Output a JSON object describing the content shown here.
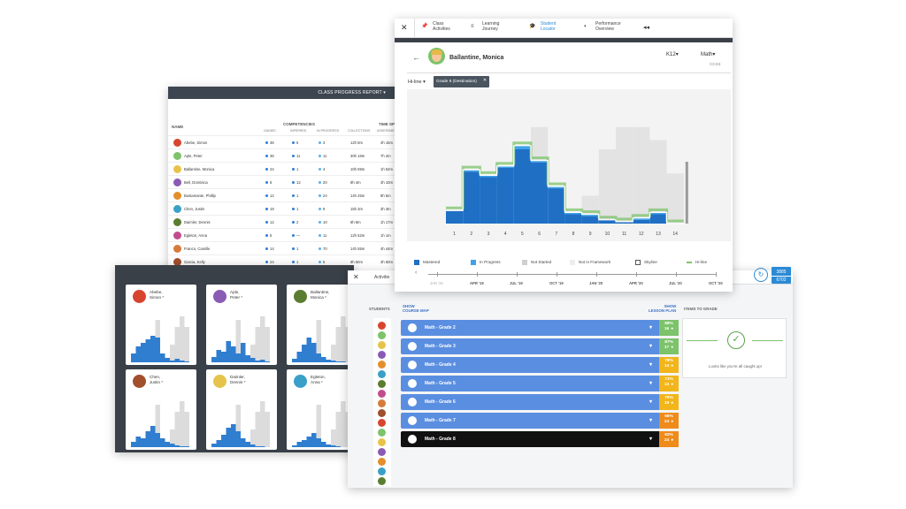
{
  "class_progress": {
    "title": "CLASS PROGRESS REPORT",
    "col_name": "NAME",
    "col_competencies": "COMPETENCIES",
    "col_time": "TIME SPE",
    "sub_gained": "GAINED",
    "sub_inferred": "INFERRED",
    "sub_inprogress": "IN PROGRESS",
    "sub_collections": "COLLECTIONS",
    "sub_assessments": "ASSESSMEN",
    "rows": [
      {
        "name": "Abebe, Simon",
        "gained": "36",
        "inferred": "5",
        "inprogress": "3",
        "collections": "12h 8m",
        "assess": "4h 15m"
      },
      {
        "name": "Aple, Peter",
        "gained": "36",
        "inferred": "11",
        "inprogress": "11",
        "collections": "30h 18m",
        "assess": "7h 2m"
      },
      {
        "name": "Ballantine, Monica",
        "gained": "24",
        "inferred": "1",
        "inprogress": "4",
        "collections": "10h 59m",
        "assess": "1h 52m"
      },
      {
        "name": "Bell, Dominica",
        "gained": "6",
        "inferred": "12",
        "inprogress": "20",
        "collections": "8h 4m",
        "assess": "4h 10m"
      },
      {
        "name": "Bustamante, Phillip",
        "gained": "12",
        "inferred": "1",
        "inprogress": "24",
        "collections": "14h 25m",
        "assess": "8h 5m"
      },
      {
        "name": "Chen, Justin",
        "gained": "19",
        "inferred": "1",
        "inprogress": "9",
        "collections": "15h 3m",
        "assess": "3h 3m"
      },
      {
        "name": "Daimler, Dennis",
        "gained": "12",
        "inferred": "2",
        "inprogress": "10",
        "collections": "6h 8m",
        "assess": "1h 17m"
      },
      {
        "name": "Egleton, Anna",
        "gained": "5",
        "inferred": "—",
        "inprogress": "11",
        "collections": "12h 52m",
        "assess": "1h 1m"
      },
      {
        "name": "Franco, Camille",
        "gained": "14",
        "inferred": "1",
        "inprogress": "70",
        "collections": "14h 55m",
        "assess": "4h 44m"
      },
      {
        "name": "Garcia, Kelly",
        "gained": "24",
        "inferred": "1",
        "inprogress": "5",
        "collections": "9h 50m",
        "assess": "3h 50m"
      }
    ]
  },
  "grid": {
    "cards": [
      {
        "name": "Abebe,\nSimon *"
      },
      {
        "name": "Aple,\nPeter *"
      },
      {
        "name": "Ballantine,\nMonica *"
      },
      {
        "name": "Chen,\nJustin *"
      },
      {
        "name": "Daimler,\nDennis *"
      },
      {
        "name": "Egleton,\nAnna *"
      }
    ]
  },
  "activities": {
    "tab_label": "Activitie",
    "students_label": "STUDENTS",
    "show_course_map": "SHOW\nCOURSE MAP",
    "show_lesson_plan": "SHOW\nLESSON PLAN",
    "items_to_grade": "ITEMS TO GRADE",
    "caught_up": "Looks like you're all caught up!",
    "badge_top": "3885",
    "badge_bottom": "6702",
    "courses": [
      {
        "name": "Math - Grade 2",
        "pct": "88%",
        "count": "16",
        "pct_color": "#7cc36a",
        "selected": false
      },
      {
        "name": "Math - Grade 3",
        "pct": "87%",
        "count": "17",
        "pct_color": "#7cc36a",
        "selected": false
      },
      {
        "name": "Math - Grade 4",
        "pct": "78%",
        "count": "14",
        "pct_color": "#f2b51a",
        "selected": false
      },
      {
        "name": "Math - Grade 5",
        "pct": "71%",
        "count": "13",
        "pct_color": "#f2b51a",
        "selected": false
      },
      {
        "name": "Math - Grade 6",
        "pct": "75%",
        "count": "19",
        "pct_color": "#f2b51a",
        "selected": false
      },
      {
        "name": "Math - Grade 7",
        "pct": "66%",
        "count": "24",
        "pct_color": "#ef8b1a",
        "selected": false
      },
      {
        "name": "Math - Grade 8",
        "pct": "62%",
        "count": "24",
        "pct_color": "#ef8b1a",
        "selected": true
      }
    ]
  },
  "locator": {
    "tabs": [
      {
        "label": "Class\nActivities",
        "active": false
      },
      {
        "label": "Learning\nJourney",
        "active": false
      },
      {
        "label": "Student\nLocator",
        "active": true
      },
      {
        "label": "Performance\nOverview",
        "active": false
      }
    ],
    "student_name": "Ballantine, Monica",
    "grade_select": "K12",
    "subject_select": "Math",
    "framework": "CCSS",
    "view_select": "Hi-line",
    "destination_chip": "Grade 8 (Destination)",
    "x_labels": [
      "1",
      "2",
      "3",
      "4",
      "5",
      "6",
      "7",
      "8",
      "9",
      "10",
      "11",
      "12",
      "13",
      "14"
    ],
    "timeline": [
      "JAN '19",
      "APR '19",
      "JUL '19",
      "OCT '19",
      "JAN '20",
      "APR '20",
      "JUL '20",
      "OCT '20"
    ],
    "legend": [
      "Mastered",
      "In Progress",
      "Not Started",
      "Not in Framework",
      "Skyline",
      "Hi-line"
    ],
    "colors": {
      "mastered": "#1f6fc5",
      "in_progress": "#3ea2ea",
      "not_started": "#cfcfcf",
      "not_in_framework": "#eeeeee",
      "hiline": "#7cc36a"
    },
    "chart_data": {
      "type": "bar",
      "categories": [
        "1",
        "2",
        "3",
        "4",
        "5",
        "6",
        "7",
        "8",
        "9",
        "10",
        "11",
        "12",
        "13",
        "14"
      ],
      "series": [
        {
          "name": "Mastered",
          "values": [
            7,
            28,
            25,
            30,
            40,
            33,
            19,
            5,
            4,
            2,
            1,
            2,
            5,
            0
          ]
        },
        {
          "name": "In Progress",
          "values": [
            0,
            1,
            1,
            1,
            2,
            1,
            1,
            1,
            1,
            0,
            0,
            1,
            1,
            0
          ]
        },
        {
          "name": "Not Started",
          "values": [
            0,
            0,
            0,
            0,
            0,
            52,
            0,
            0,
            15,
            40,
            52,
            52,
            45,
            27
          ]
        }
      ],
      "ylim": [
        0,
        60
      ]
    }
  }
}
